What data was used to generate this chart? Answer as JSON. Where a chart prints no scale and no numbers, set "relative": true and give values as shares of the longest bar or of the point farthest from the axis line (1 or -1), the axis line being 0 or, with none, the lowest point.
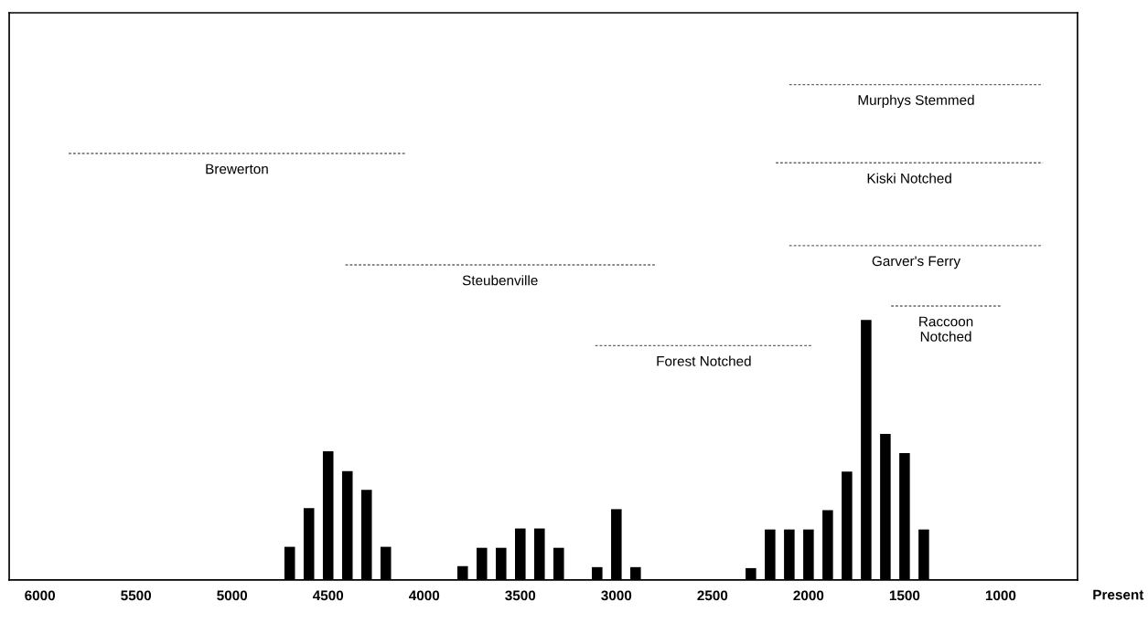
{
  "chart_data": {
    "type": "bar",
    "relative": true,
    "xlabel": "Present",
    "xlim": [
      6160,
      600
    ],
    "xticks": [
      6000,
      5500,
      5000,
      4500,
      4000,
      3500,
      3000,
      2500,
      2000,
      1500,
      1000
    ],
    "grid": false,
    "legend": false,
    "tick_labels": "x",
    "series": [
      {
        "color": "#000000",
        "x": [
          4700,
          4600,
          4500,
          4400,
          4300,
          4200,
          3800,
          3700,
          3600,
          3500,
          3400,
          3300,
          3100,
          3000,
          2900,
          2300,
          2200,
          2100,
          2000,
          1900,
          1800,
          1700,
          1600,
          1500,
          1400
        ],
        "values": [
          0.067,
          0.145,
          0.26,
          0.22,
          0.182,
          0.067,
          0.028,
          0.065,
          0.065,
          0.104,
          0.104,
          0.065,
          0.026,
          0.143,
          0.026,
          0.024,
          0.102,
          0.102,
          0.102,
          0.141,
          0.219,
          0.525,
          0.295,
          0.256,
          0.102
        ]
      },
      {
        "type": "line",
        "name": "Murphys Stemmed",
        "color": "#666666",
        "line_style": "dashed",
        "x": [
          2100,
          780
        ],
        "values": [
          1,
          1
        ]
      },
      {
        "type": "line",
        "name": "Brewerton",
        "color": "#666666",
        "line_style": "dashed",
        "x": [
          5850,
          4100
        ],
        "values": [
          0.861,
          0.861
        ]
      },
      {
        "type": "line",
        "name": "Kiski Notched",
        "color": "#666666",
        "line_style": "dashed",
        "x": [
          2170,
          780
        ],
        "values": [
          0.842,
          0.842
        ]
      },
      {
        "type": "line",
        "name": "Garver's Ferry",
        "color": "#666666",
        "line_style": "dashed",
        "x": [
          2100,
          780
        ],
        "values": [
          0.675,
          0.675
        ]
      },
      {
        "type": "line",
        "name": "Steubenville",
        "color": "#666666",
        "line_style": "dashed",
        "x": [
          4410,
          2800
        ],
        "values": [
          0.636,
          0.636
        ]
      },
      {
        "type": "line",
        "name": "Raccoon\nNotched",
        "color": "#666666",
        "line_style": "dashed",
        "x": [
          1570,
          1000
        ],
        "values": [
          0.553,
          0.553
        ]
      },
      {
        "type": "line",
        "name": "Forest Notched",
        "color": "#666666",
        "line_style": "dashed",
        "x": [
          3110,
          1980
        ],
        "values": [
          0.473,
          0.473
        ]
      }
    ]
  }
}
